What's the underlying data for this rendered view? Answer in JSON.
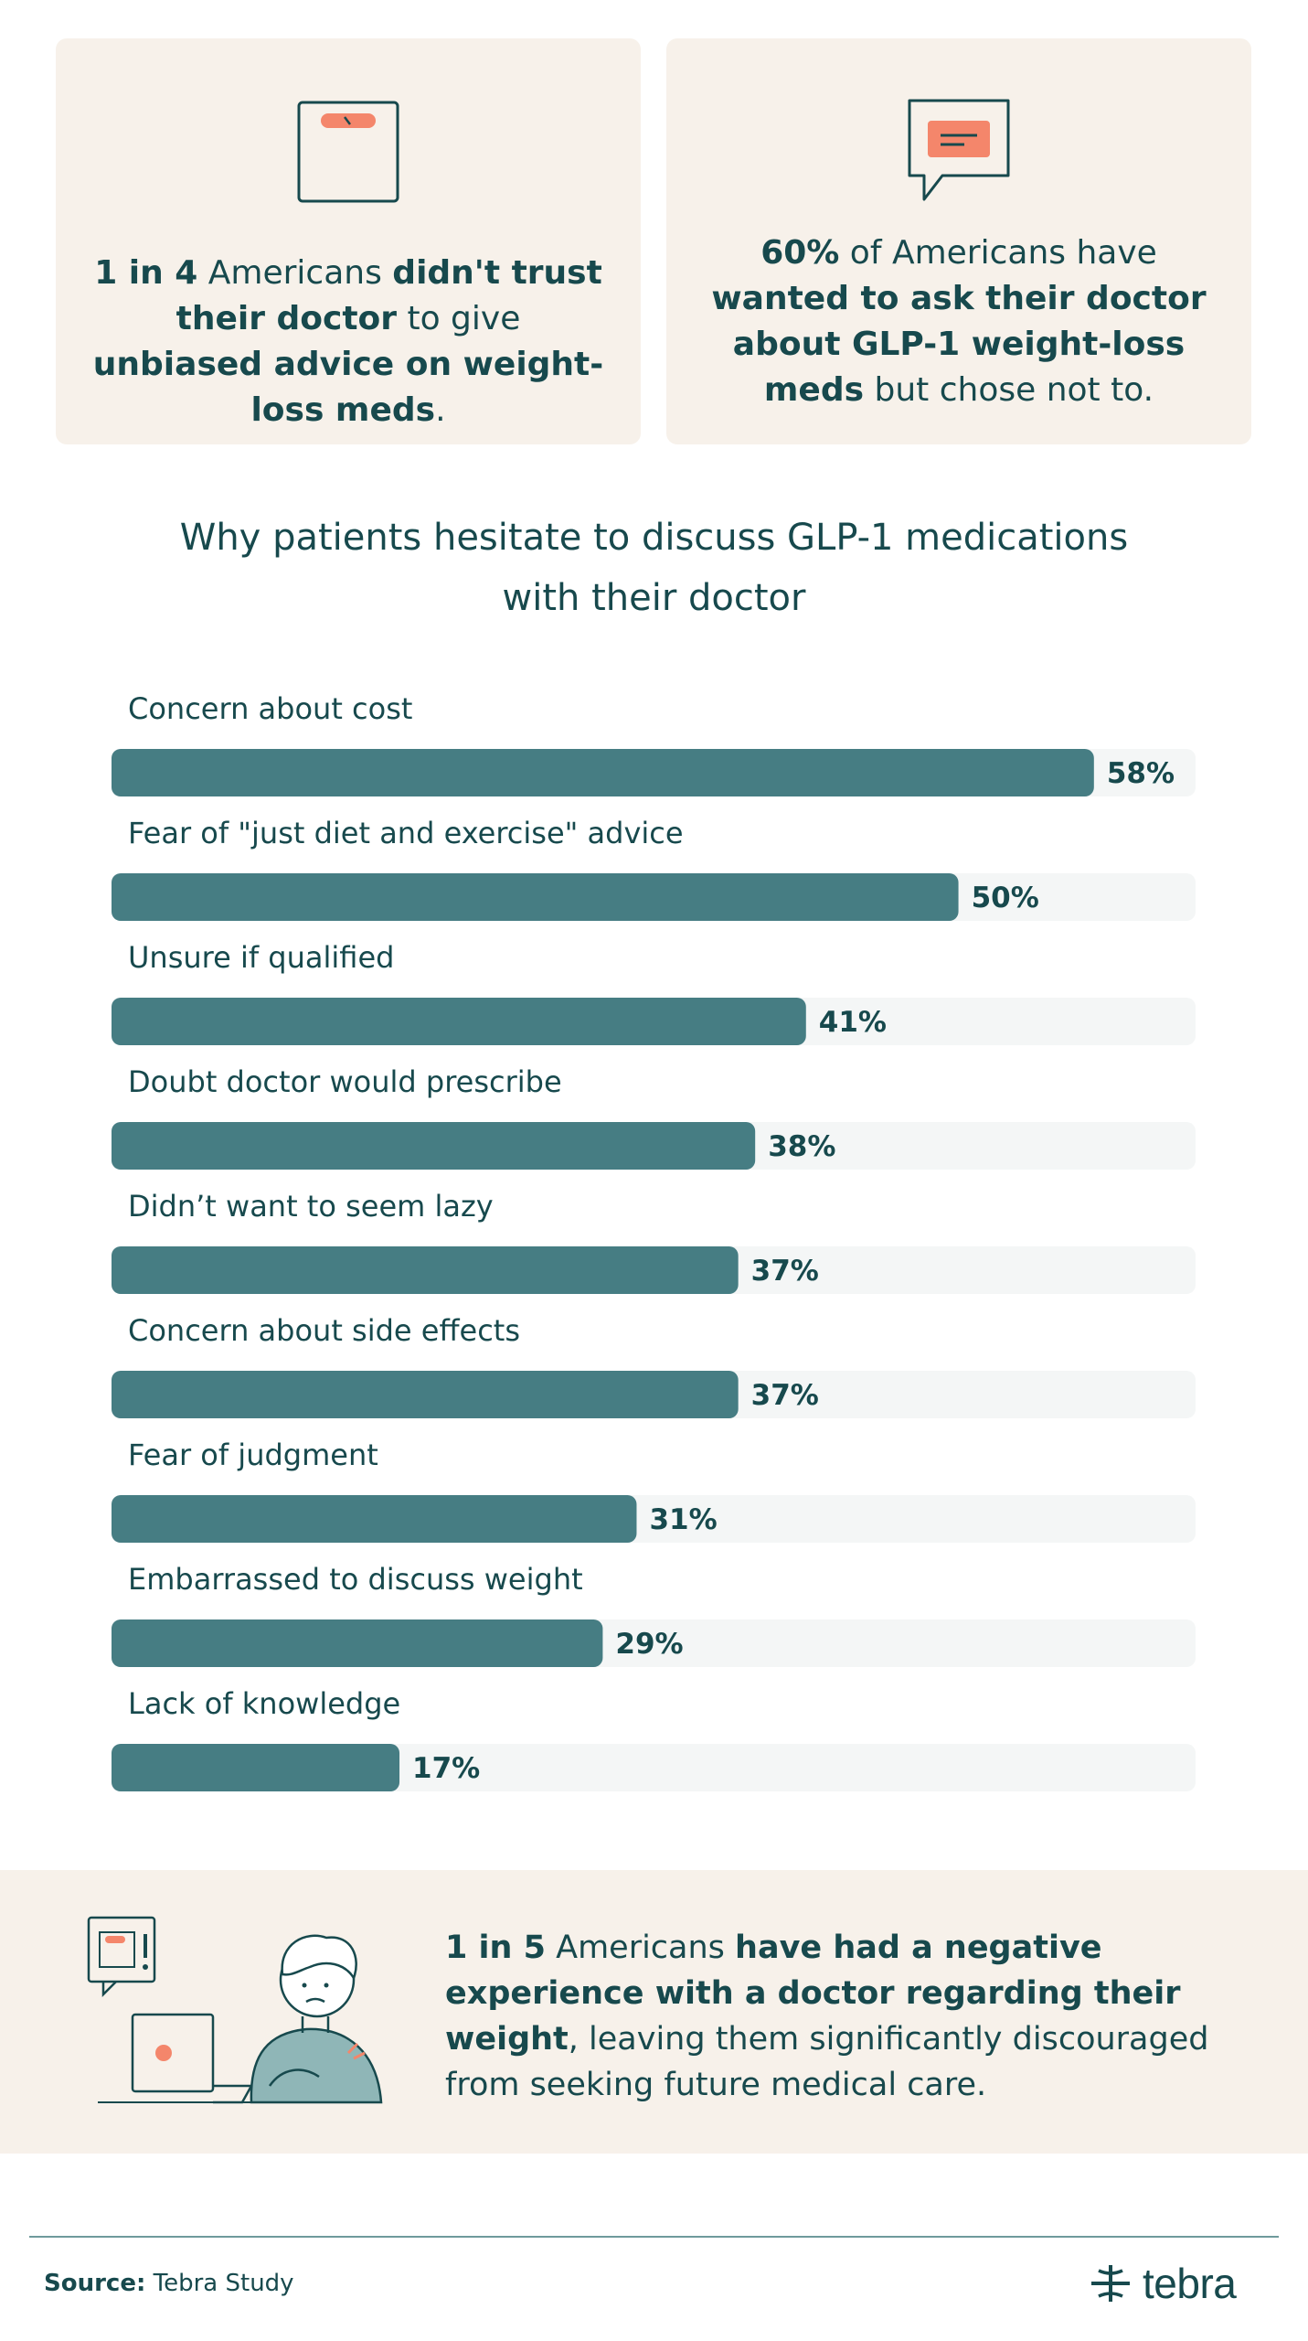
{
  "stat_cards": {
    "left": {
      "icon": "scale-icon",
      "parts": [
        {
          "text": "1 in 4",
          "bold": true
        },
        {
          "text": " Americans ",
          "bold": false
        },
        {
          "text": "didn't trust their doctor",
          "bold": true
        },
        {
          "text": " to give ",
          "bold": false
        },
        {
          "text": "unbiased advice on weight-loss meds",
          "bold": true
        },
        {
          "text": ".",
          "bold": false
        }
      ]
    },
    "right": {
      "icon": "chat-bubble-icon",
      "parts": [
        {
          "text": "60%",
          "bold": true
        },
        {
          "text": " of Americans have ",
          "bold": false
        },
        {
          "text": "wanted to ask their doctor about GLP-1 weight-loss meds",
          "bold": true
        },
        {
          "text": " but chose not to.",
          "bold": false
        }
      ]
    }
  },
  "chart_data": {
    "type": "bar",
    "orientation": "horizontal",
    "title": "Why patients hesitate to discuss GLP-1 medications with their doctor",
    "title_lines": [
      "Why patients hesitate to discuss GLP-1 medications",
      "with their doctor"
    ],
    "categories": [
      "Concern about cost",
      "Fear of \"just diet and exercise\" advice",
      "Unsure if qualified",
      "Doubt doctor would prescribe",
      "Didn’t want to seem lazy",
      "Concern about side effects",
      "Fear of judgment",
      "Embarrassed to discuss weight",
      "Lack of knowledge"
    ],
    "values": [
      58,
      50,
      41,
      38,
      37,
      37,
      31,
      29,
      17
    ],
    "value_labels": [
      "58%",
      "50%",
      "41%",
      "38%",
      "37%",
      "37%",
      "31%",
      "29%",
      "17%"
    ],
    "xlim": [
      0,
      64
    ],
    "unit": "%",
    "colors": {
      "bar": "#467d83",
      "track": "#f4f6f6",
      "label": "#17494d"
    }
  },
  "banner": {
    "illustration": "person-at-laptop-icon",
    "parts": [
      {
        "text": "1 in 5",
        "bold": true
      },
      {
        "text": " Americans ",
        "bold": false
      },
      {
        "text": "have had a negative experience with a doctor regarding their weight",
        "bold": true
      },
      {
        "text": ", leaving them significantly discouraged from seeking future medical care.",
        "bold": false
      }
    ]
  },
  "footer": {
    "source_label": "Source:",
    "source_value": "Tebra Study",
    "logo_text": "tebra"
  },
  "colors": {
    "primary": "#17494d",
    "bar": "#467d83",
    "card_bg": "#f7f1ea",
    "accent": "#f4866b"
  }
}
